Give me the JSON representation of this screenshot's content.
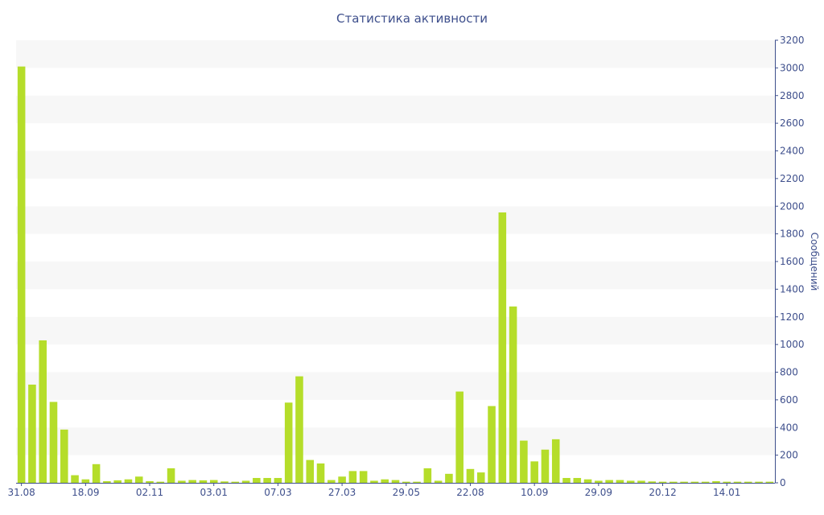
{
  "chart_data": {
    "type": "bar",
    "title": "Статистика активности",
    "ylabel": "Сообщений",
    "xlabel": "",
    "ylim": [
      0,
      3200
    ],
    "y_ticks": [
      0,
      200,
      400,
      600,
      800,
      1000,
      1200,
      1400,
      1600,
      1800,
      2000,
      2200,
      2400,
      2600,
      2800,
      3000,
      3200
    ],
    "x_tick_labels": [
      {
        "index": 0,
        "label": "31.08"
      },
      {
        "index": 6,
        "label": "18.09"
      },
      {
        "index": 12,
        "label": "02.11"
      },
      {
        "index": 18,
        "label": "03.01"
      },
      {
        "index": 24,
        "label": "07.03"
      },
      {
        "index": 30,
        "label": "27.03"
      },
      {
        "index": 36,
        "label": "29.05"
      },
      {
        "index": 42,
        "label": "22.08"
      },
      {
        "index": 48,
        "label": "10.09"
      },
      {
        "index": 54,
        "label": "29.09"
      },
      {
        "index": 60,
        "label": "20.12"
      },
      {
        "index": 66,
        "label": "14.01"
      }
    ],
    "grid": "horizontal-bands",
    "bar_color": "#b5dd2a",
    "values": [
      3010,
      710,
      1030,
      585,
      385,
      55,
      25,
      135,
      12,
      18,
      25,
      45,
      12,
      8,
      105,
      15,
      20,
      18,
      20,
      10,
      8,
      15,
      35,
      35,
      35,
      580,
      770,
      165,
      140,
      20,
      45,
      85,
      85,
      15,
      25,
      20,
      8,
      8,
      105,
      15,
      65,
      660,
      100,
      75,
      555,
      1955,
      1275,
      305,
      155,
      240,
      315,
      35,
      35,
      25,
      15,
      20,
      20,
      15,
      15,
      10,
      8,
      8,
      8,
      8,
      8,
      12,
      8,
      8,
      8,
      8,
      8
    ]
  }
}
